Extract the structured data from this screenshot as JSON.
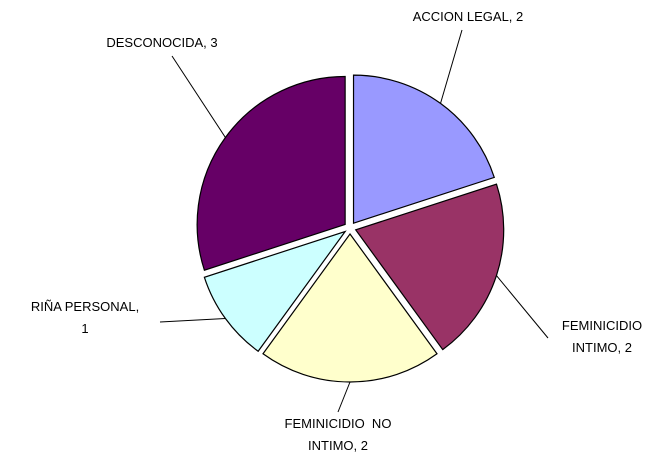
{
  "chart_data": {
    "type": "pie",
    "categories": [
      "ACCION LEGAL",
      "FEMINICIDIO INTIMO",
      "FEMINICIDIO  NO INTIMO",
      "RIÑA PERSONAL",
      "DESCONOCIDA"
    ],
    "values": [
      2,
      2,
      2,
      1,
      3
    ],
    "value_labels": [
      [
        "ACCION LEGAL, 2"
      ],
      [
        "FEMINICIDIO",
        "INTIMO, 2"
      ],
      [
        "FEMINICIDIO  NO",
        "INTIMO, 2"
      ],
      [
        "RIÑA PERSONAL,",
        "1"
      ],
      [
        "DESCONOCIDA, 3"
      ]
    ],
    "colors": [
      "#9999ff",
      "#993366",
      "#ffffcc",
      "#ccffff",
      "#660066"
    ]
  }
}
